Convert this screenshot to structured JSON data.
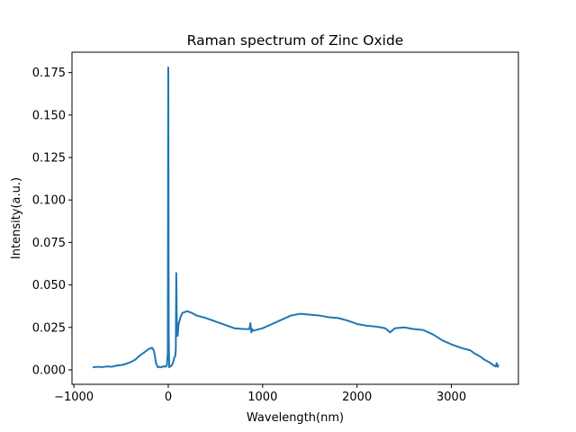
{
  "chart_data": {
    "type": "line",
    "title": "Raman spectrum of Zinc Oxide",
    "xlabel": "Wavelength(nm)",
    "ylabel": "Intensity(a.u.)",
    "xlim": [
      -1020,
      3710
    ],
    "ylim": [
      -0.0085,
      0.187
    ],
    "xticks": [
      -1000,
      0,
      1000,
      2000,
      3000
    ],
    "xtick_labels": [
      "−1000",
      "0",
      "1000",
      "2000",
      "3000"
    ],
    "yticks": [
      0.0,
      0.025,
      0.05,
      0.075,
      0.1,
      0.125,
      0.15,
      0.175
    ],
    "ytick_labels": [
      "0.000",
      "0.025",
      "0.050",
      "0.075",
      "0.100",
      "0.125",
      "0.150",
      "0.175"
    ],
    "grid": false,
    "series": [
      {
        "color": "#1f77b4",
        "x": [
          -800,
          -750,
          -700,
          -650,
          -600,
          -550,
          -500,
          -450,
          -400,
          -350,
          -300,
          -250,
          -200,
          -170,
          -150,
          -130,
          -110,
          -90,
          -70,
          -50,
          -30,
          -15,
          -5,
          -2,
          0,
          2,
          5,
          10,
          20,
          35,
          50,
          65,
          75,
          80,
          85,
          90,
          95,
          100,
          110,
          130,
          150,
          200,
          250,
          300,
          400,
          500,
          600,
          700,
          800,
          860,
          870,
          880,
          890,
          900,
          1000,
          1100,
          1200,
          1300,
          1400,
          1500,
          1600,
          1700,
          1800,
          1900,
          2000,
          2100,
          2200,
          2250,
          2300,
          2350,
          2400,
          2500,
          2600,
          2700,
          2800,
          2900,
          3000,
          3100,
          3200,
          3250,
          3300,
          3350,
          3400,
          3450,
          3470,
          3480,
          3490,
          3500
        ],
        "y": [
          0.0015,
          0.0018,
          0.0016,
          0.002,
          0.0018,
          0.0025,
          0.0028,
          0.0035,
          0.0045,
          0.006,
          0.0085,
          0.0105,
          0.0125,
          0.013,
          0.011,
          0.004,
          0.0015,
          0.0018,
          0.0015,
          0.0022,
          0.0018,
          0.0025,
          0.01,
          0.12,
          0.178,
          0.12,
          0.02,
          0.0015,
          0.002,
          0.0025,
          0.004,
          0.0075,
          0.008,
          0.012,
          0.057,
          0.03,
          0.022,
          0.02,
          0.027,
          0.031,
          0.0335,
          0.0345,
          0.0335,
          0.032,
          0.0305,
          0.0285,
          0.0265,
          0.0245,
          0.024,
          0.024,
          0.0275,
          0.022,
          0.024,
          0.023,
          0.0245,
          0.027,
          0.0295,
          0.032,
          0.033,
          0.0325,
          0.032,
          0.031,
          0.0305,
          0.029,
          0.027,
          0.026,
          0.0255,
          0.025,
          0.0245,
          0.022,
          0.0245,
          0.025,
          0.024,
          0.0235,
          0.021,
          0.0175,
          0.015,
          0.013,
          0.0115,
          0.0095,
          0.008,
          0.006,
          0.0045,
          0.0025,
          0.002,
          0.004,
          0.0018,
          0.003
        ]
      }
    ]
  }
}
